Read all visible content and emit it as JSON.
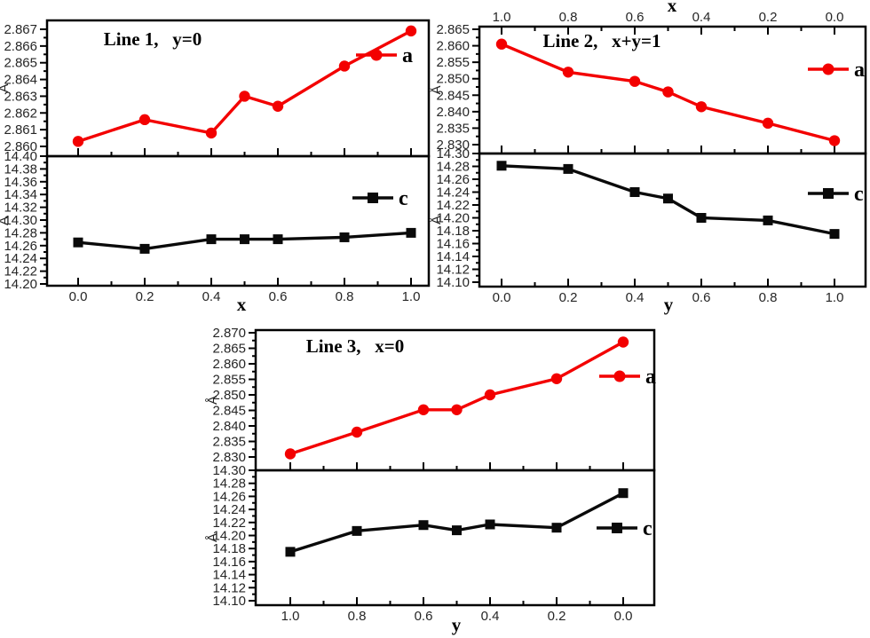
{
  "figure": {
    "description": "Lattice parameters a and c (Angstrom) versus composition for three substitution lines",
    "unit_label": "Å"
  },
  "colors": {
    "series_a": "#f30000",
    "series_c": "#0a0a0a",
    "frame": "#000000",
    "tick_text": "#262626"
  },
  "chart_data": [
    {
      "id": "line1",
      "type": "line",
      "title": "Line 1,   y=0",
      "x_values": [
        0.0,
        0.2,
        0.4,
        0.5,
        0.6,
        0.8,
        1.0
      ],
      "x_axis": {
        "label": "x",
        "tick_values": [
          0.0,
          0.2,
          0.4,
          0.6,
          0.8,
          1.0
        ],
        "tick_labels": [
          "0.0",
          "0.2",
          "0.4",
          "0.6",
          "0.8",
          "1.0"
        ],
        "minor_ticks": [
          0.1,
          0.3,
          0.5,
          0.7,
          0.9
        ],
        "top_axis": null
      },
      "subplots": [
        {
          "series_name": "a",
          "legend_label": "a",
          "marker": "circle",
          "color": "#f30000",
          "y_axis_label": "Å",
          "values": [
            2.8603,
            2.8616,
            2.8608,
            2.863,
            2.8624,
            2.8648,
            2.8669
          ],
          "y_ticks": {
            "values": [
              2.86,
              2.861,
              2.862,
              2.863,
              2.864,
              2.865,
              2.866,
              2.867
            ],
            "labels": [
              "2.860",
              "2.861",
              "2.862",
              "2.863",
              "2.864",
              "2.865",
              "2.866",
              "2.867"
            ]
          }
        },
        {
          "series_name": "c",
          "legend_label": "c",
          "marker": "square",
          "color": "#0a0a0a",
          "y_axis_label": "Å",
          "values": [
            14.265,
            14.255,
            14.27,
            14.27,
            14.27,
            14.273,
            14.28
          ],
          "y_ticks": {
            "values": [
              14.2,
              14.22,
              14.24,
              14.26,
              14.28,
              14.3,
              14.32,
              14.34,
              14.36,
              14.38,
              14.4
            ],
            "labels": [
              "14.20",
              "14.22",
              "14.24",
              "14.26",
              "14.28",
              "14.30",
              "14.32",
              "14.34",
              "14.36",
              "14.38",
              "14.40"
            ]
          }
        }
      ]
    },
    {
      "id": "line2",
      "type": "line",
      "title": "Line 2,   x+y=1",
      "x_values": [
        0.0,
        0.2,
        0.4,
        0.5,
        0.6,
        0.8,
        1.0
      ],
      "x_axis": {
        "label": "y",
        "tick_values": [
          0.0,
          0.2,
          0.4,
          0.6,
          0.8,
          1.0
        ],
        "tick_labels": [
          "0.0",
          "0.2",
          "0.4",
          "0.6",
          "0.8",
          "1.0"
        ],
        "minor_ticks": [
          0.1,
          0.3,
          0.5,
          0.7,
          0.9
        ],
        "top_axis": {
          "label": "x",
          "tick_labels": [
            "1.0",
            "0.8",
            "0.6",
            "0.4",
            "0.2",
            "0.0"
          ]
        }
      },
      "subplots": [
        {
          "series_name": "a",
          "legend_label": "a",
          "marker": "circle",
          "color": "#f30000",
          "y_axis_label": "Å",
          "values": [
            2.8605,
            2.852,
            2.8492,
            2.846,
            2.8415,
            2.8365,
            2.8312
          ],
          "y_ticks": {
            "values": [
              2.83,
              2.835,
              2.84,
              2.845,
              2.85,
              2.855,
              2.86,
              2.865
            ],
            "labels": [
              "2.830",
              "2.835",
              "2.840",
              "2.845",
              "2.850",
              "2.855",
              "2.860",
              "2.865"
            ]
          }
        },
        {
          "series_name": "c",
          "legend_label": "c",
          "marker": "square",
          "color": "#0a0a0a",
          "y_axis_label": "Å",
          "values": [
            14.281,
            14.276,
            14.24,
            14.23,
            14.2,
            14.196,
            14.175
          ],
          "y_ticks": {
            "values": [
              14.1,
              14.12,
              14.14,
              14.16,
              14.18,
              14.2,
              14.22,
              14.24,
              14.26,
              14.28,
              14.3
            ],
            "labels": [
              "14.10",
              "14.12",
              "14.14",
              "14.16",
              "14.18",
              "14.20",
              "14.22",
              "14.24",
              "14.26",
              "14.28",
              "14.30"
            ]
          }
        }
      ]
    },
    {
      "id": "line3",
      "type": "line",
      "title": "Line 3,   x=0",
      "x_values": [
        1.0,
        0.8,
        0.6,
        0.5,
        0.4,
        0.2,
        0.0
      ],
      "x_axis": {
        "label": "y",
        "reversed": true,
        "tick_values": [
          1.0,
          0.8,
          0.6,
          0.4,
          0.2,
          0.0
        ],
        "tick_labels": [
          "1.0",
          "0.8",
          "0.6",
          "0.4",
          "0.2",
          "0.0"
        ],
        "minor_ticks": [
          0.9,
          0.7,
          0.5,
          0.3,
          0.1
        ],
        "top_axis": null
      },
      "subplots": [
        {
          "series_name": "a",
          "legend_label": "a",
          "marker": "circle",
          "color": "#f30000",
          "y_axis_label": "Å",
          "values": [
            2.831,
            2.838,
            2.8452,
            2.8452,
            2.85,
            2.8552,
            2.867
          ],
          "y_ticks": {
            "values": [
              2.83,
              2.835,
              2.84,
              2.845,
              2.85,
              2.855,
              2.86,
              2.865,
              2.87
            ],
            "labels": [
              "2.830",
              "2.835",
              "2.840",
              "2.845",
              "2.850",
              "2.855",
              "2.860",
              "2.865",
              "2.870"
            ]
          }
        },
        {
          "series_name": "c",
          "legend_label": "c",
          "marker": "square",
          "color": "#0a0a0a",
          "y_axis_label": "Å",
          "values": [
            14.175,
            14.207,
            14.216,
            14.208,
            14.217,
            14.212,
            14.265
          ],
          "y_ticks": {
            "values": [
              14.1,
              14.12,
              14.14,
              14.16,
              14.18,
              14.2,
              14.22,
              14.24,
              14.26,
              14.28,
              14.3
            ],
            "labels": [
              "14.10",
              "14.12",
              "14.14",
              "14.16",
              "14.18",
              "14.20",
              "14.22",
              "14.24",
              "14.26",
              "14.28",
              "14.30"
            ]
          }
        }
      ]
    }
  ]
}
